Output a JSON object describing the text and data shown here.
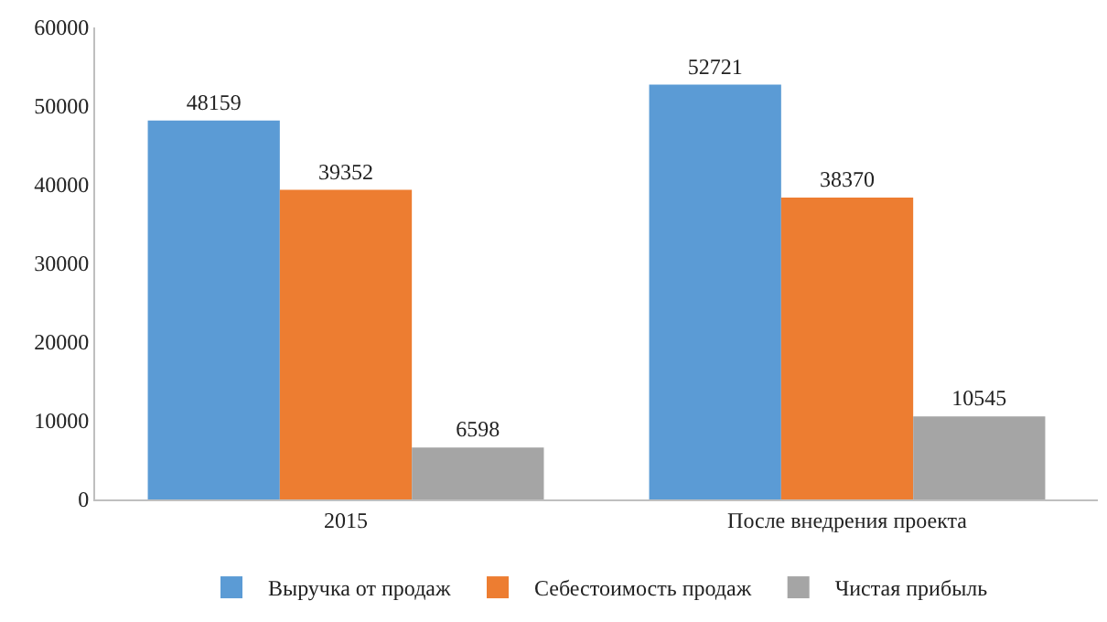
{
  "chart_data": {
    "type": "bar",
    "categories": [
      "2015",
      "После внедрения проекта"
    ],
    "series": [
      {
        "name": "Выручка от продаж",
        "color": "#5b9bd5",
        "values": [
          48159,
          52721
        ]
      },
      {
        "name": "Себестоимость продаж",
        "color": "#ed7d31",
        "values": [
          39352,
          38370
        ]
      },
      {
        "name": "Чистая прибыль",
        "color": "#a5a5a5",
        "values": [
          6598,
          10545
        ]
      }
    ],
    "ylim": [
      0,
      60000
    ],
    "yticks": [
      0,
      10000,
      20000,
      30000,
      40000,
      50000,
      60000
    ],
    "data_labels": true,
    "grid": false,
    "legend": "bottom"
  }
}
